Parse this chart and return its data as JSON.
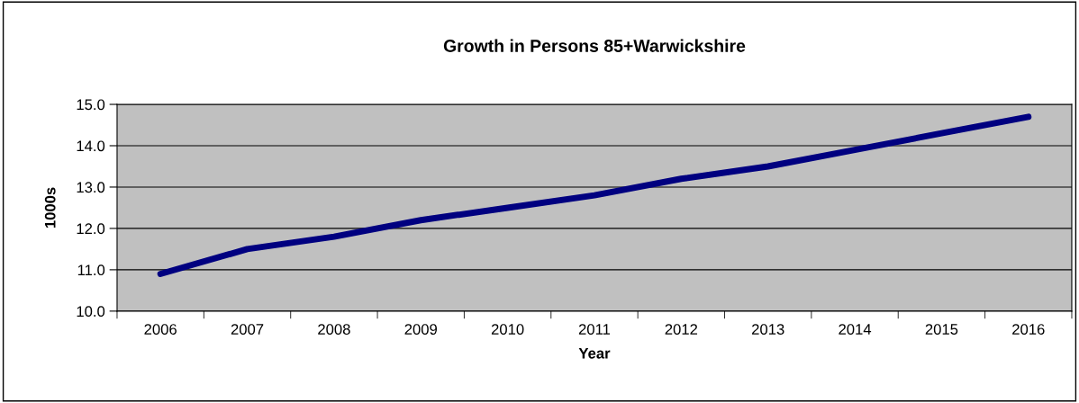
{
  "chart_data": {
    "type": "line",
    "title": "Growth in Persons 85+Warwickshire",
    "xlabel": "Year",
    "ylabel": "1000s",
    "categories": [
      "2006",
      "2007",
      "2008",
      "2009",
      "2010",
      "2011",
      "2012",
      "2013",
      "2014",
      "2015",
      "2016"
    ],
    "series": [
      {
        "color": "#000080",
        "values": [
          10.9,
          11.5,
          11.8,
          12.2,
          12.5,
          12.8,
          13.2,
          13.5,
          13.9,
          14.3,
          14.7
        ]
      }
    ],
    "ylim": [
      10.0,
      15.0
    ],
    "yticks": [
      {
        "value": 10,
        "label": "10.0"
      },
      {
        "value": 11,
        "label": "11.0"
      },
      {
        "value": 12,
        "label": "12.0"
      },
      {
        "value": 13,
        "label": "13.0"
      },
      {
        "value": 14,
        "label": "14.0"
      },
      {
        "value": 15,
        "label": "15.0"
      }
    ],
    "grid": "y",
    "marker": "none",
    "line_style": "solid"
  }
}
